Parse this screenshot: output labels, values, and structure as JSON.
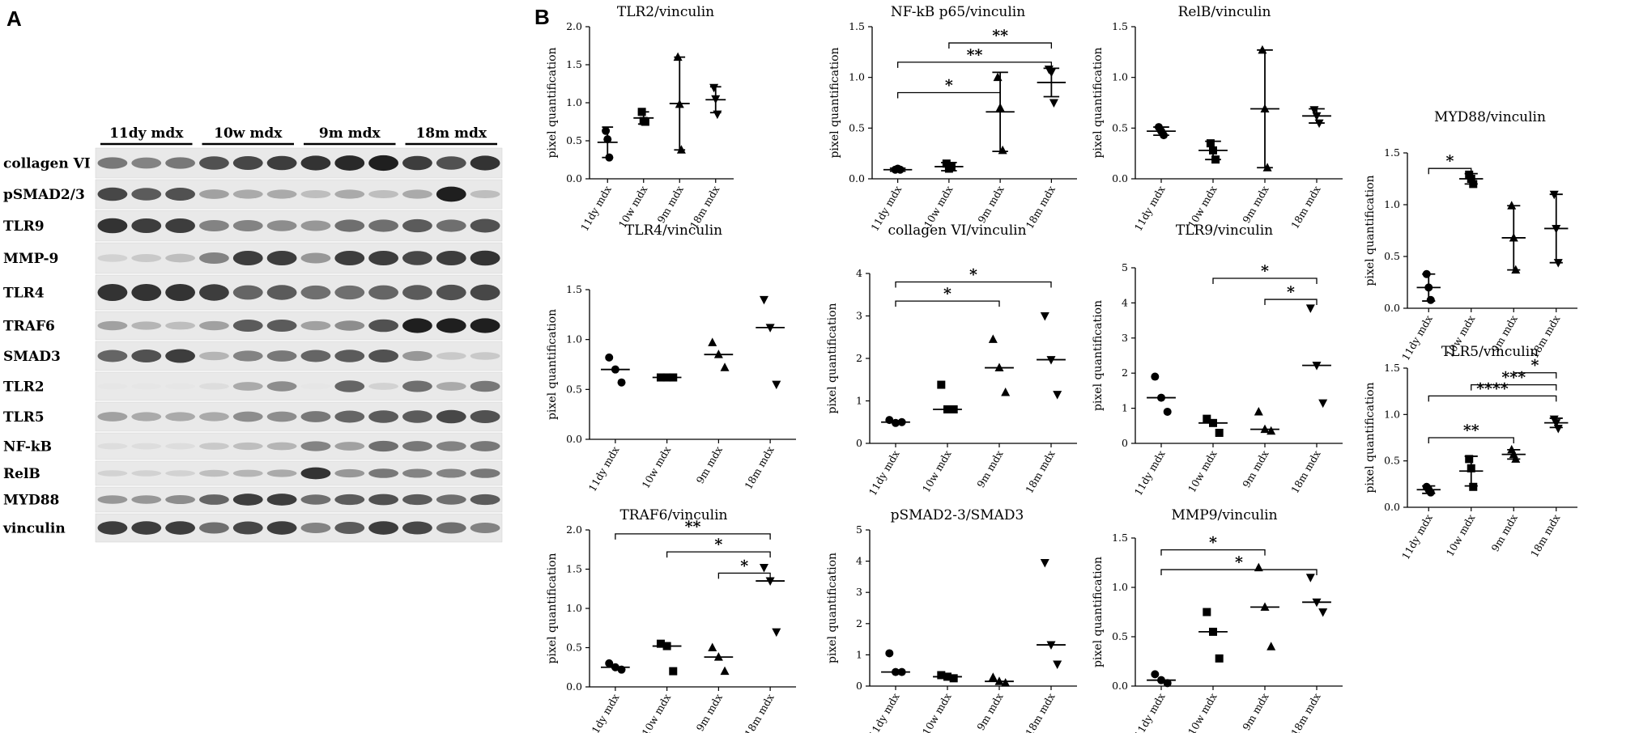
{
  "panel_a": {
    "letter": "A",
    "groups": [
      "11dy mdx",
      "10w mdx",
      "9m mdx",
      "18m mdx"
    ],
    "rows": [
      {
        "label": "collagen VI",
        "bands": [
          0.55,
          0.5,
          0.55,
          0.75,
          0.8,
          0.85,
          0.9,
          0.95,
          1.0,
          0.85,
          0.75,
          0.9
        ]
      },
      {
        "label": "pSMAD2/3",
        "bands": [
          0.8,
          0.7,
          0.75,
          0.35,
          0.3,
          0.3,
          0.2,
          0.3,
          0.2,
          0.3,
          1.0,
          0.2
        ]
      },
      {
        "label": "TLR9",
        "bands": [
          0.9,
          0.85,
          0.85,
          0.5,
          0.5,
          0.45,
          0.4,
          0.6,
          0.6,
          0.7,
          0.6,
          0.75
        ]
      },
      {
        "label": "MMP-9",
        "bands": [
          0.1,
          0.15,
          0.2,
          0.5,
          0.85,
          0.85,
          0.4,
          0.85,
          0.85,
          0.8,
          0.85,
          0.9
        ]
      },
      {
        "label": "TLR4",
        "bands": [
          0.9,
          0.9,
          0.9,
          0.85,
          0.65,
          0.7,
          0.6,
          0.6,
          0.65,
          0.7,
          0.75,
          0.8
        ]
      },
      {
        "label": "TRAF6",
        "bands": [
          0.35,
          0.25,
          0.2,
          0.35,
          0.7,
          0.7,
          0.35,
          0.45,
          0.75,
          1.0,
          1.0,
          1.0
        ]
      },
      {
        "label": "SMAD3",
        "bands": [
          0.65,
          0.75,
          0.85,
          0.25,
          0.5,
          0.55,
          0.65,
          0.7,
          0.75,
          0.4,
          0.15,
          0.15
        ]
      },
      {
        "label": "TLR2",
        "bands": [
          0.0,
          0.0,
          0.0,
          0.05,
          0.3,
          0.45,
          0.0,
          0.65,
          0.1,
          0.6,
          0.3,
          0.55
        ]
      },
      {
        "label": "TLR5",
        "bands": [
          0.35,
          0.3,
          0.3,
          0.3,
          0.45,
          0.45,
          0.55,
          0.65,
          0.7,
          0.7,
          0.8,
          0.75
        ]
      },
      {
        "label": "NF-kB",
        "bands": [
          0.05,
          0.05,
          0.05,
          0.15,
          0.2,
          0.25,
          0.5,
          0.35,
          0.6,
          0.55,
          0.5,
          0.55
        ]
      },
      {
        "label": "RelB",
        "bands": [
          0.1,
          0.1,
          0.1,
          0.2,
          0.25,
          0.3,
          0.9,
          0.4,
          0.55,
          0.5,
          0.5,
          0.55
        ]
      },
      {
        "label": "MYD88",
        "bands": [
          0.4,
          0.4,
          0.45,
          0.65,
          0.85,
          0.85,
          0.6,
          0.7,
          0.75,
          0.7,
          0.6,
          0.7
        ]
      },
      {
        "label": "vinculin",
        "bands": [
          0.85,
          0.85,
          0.85,
          0.6,
          0.8,
          0.85,
          0.5,
          0.7,
          0.85,
          0.8,
          0.6,
          0.5
        ]
      }
    ]
  },
  "panel_b": {
    "letter": "B"
  },
  "chart_data": [
    {
      "type": "scatter",
      "title": "TLR2/vinculin",
      "ylabel": "pixel quantification",
      "categories": [
        "11dy mdx",
        "10w mdx",
        "9m mdx",
        "18m mdx"
      ],
      "ylim": [
        0,
        2.0
      ],
      "yticks": [
        "0.0",
        "0.5",
        "1.0",
        "1.5",
        "2.0"
      ],
      "summary": "mean-sd",
      "means": [
        0.48,
        0.8,
        0.99,
        1.04
      ],
      "sd": [
        0.2,
        0.08,
        0.61,
        0.17
      ],
      "points": [
        [
          0.63,
          0.52,
          0.28
        ],
        [
          0.88,
          0.76,
          0.75
        ],
        [
          1.6,
          0.98,
          0.38
        ],
        [
          1.2,
          1.05,
          0.85
        ]
      ],
      "significance": []
    },
    {
      "type": "scatter",
      "title": "NF-kB p65/vinculin",
      "ylabel": "pixel quantification",
      "categories": [
        "11dy mdx",
        "10w mdx",
        "9m mdx",
        "18m mdx"
      ],
      "ylim": [
        0,
        1.5
      ],
      "yticks": [
        "0.0",
        "0.5",
        "1.0",
        "1.5"
      ],
      "summary": "mean-sd",
      "means": [
        0.09,
        0.12,
        0.66,
        0.95
      ],
      "sd": [
        0.015,
        0.04,
        0.39,
        0.14
      ],
      "points": [
        [
          0.09,
          0.1,
          0.09
        ],
        [
          0.15,
          0.1,
          0.12
        ],
        [
          1.0,
          0.7,
          0.28
        ],
        [
          1.08,
          1.05,
          0.75
        ]
      ],
      "significance": [
        {
          "from": 0,
          "to": 2,
          "label": "*",
          "y": 0.85
        },
        {
          "from": 0,
          "to": 3,
          "label": "**",
          "y": 1.15
        },
        {
          "from": 1,
          "to": 3,
          "label": "**",
          "y": 1.34
        }
      ]
    },
    {
      "type": "scatter",
      "title": "RelB/vinculin",
      "ylabel": "pixel quantification",
      "categories": [
        "11dy mdx",
        "10w mdx",
        "9m mdx",
        "18m mdx"
      ],
      "ylim": [
        0,
        1.5
      ],
      "yticks": [
        "0.0",
        "0.5",
        "1.0",
        "1.5"
      ],
      "summary": "mean-sd",
      "means": [
        0.47,
        0.28,
        0.69,
        0.62
      ],
      "sd": [
        0.04,
        0.09,
        0.58,
        0.07
      ],
      "points": [
        [
          0.51,
          0.47,
          0.43
        ],
        [
          0.35,
          0.28,
          0.19
        ],
        [
          1.27,
          0.69,
          0.11
        ],
        [
          0.68,
          0.62,
          0.55
        ]
      ],
      "significance": []
    },
    {
      "type": "scatter",
      "title": "MYD88/vinculin",
      "ylabel": "pixel quantification",
      "categories": [
        "11dy mdx",
        "10w mdx",
        "9m mdx",
        "18m mdx"
      ],
      "ylim": [
        0,
        1.5
      ],
      "yticks": [
        "0.0",
        "0.5",
        "1.0",
        "1.5"
      ],
      "summary": "mean-sd",
      "means": [
        0.2,
        1.25,
        0.68,
        0.77
      ],
      "sd": [
        0.13,
        0.05,
        0.31,
        0.33
      ],
      "points": [
        [
          0.33,
          0.2,
          0.08
        ],
        [
          1.29,
          1.25,
          1.2
        ],
        [
          0.99,
          0.68,
          0.37
        ],
        [
          1.1,
          0.77,
          0.44
        ]
      ],
      "significance": [
        {
          "from": 0,
          "to": 1,
          "label": "*",
          "y": 1.35
        }
      ]
    },
    {
      "type": "scatter",
      "title": "TLR4/vinculin",
      "ylabel": "pixel quantification",
      "categories": [
        "11dy mdx",
        "10w mdx",
        "9m mdx",
        "18m mdx"
      ],
      "ylim": [
        0,
        1.5
      ],
      "yticks": [
        "0.0",
        "0.5",
        "1.0",
        "1.5"
      ],
      "summary": "median",
      "medians": [
        0.7,
        0.62,
        0.85,
        1.12
      ],
      "points": [
        [
          0.82,
          0.7,
          0.57
        ],
        [
          0.62,
          0.62,
          0.62
        ],
        [
          0.97,
          0.85,
          0.72
        ],
        [
          1.4,
          1.12,
          0.55
        ]
      ],
      "significance": []
    },
    {
      "type": "scatter",
      "title": "collagen VI/vinculin",
      "ylabel": "pixel quantification",
      "categories": [
        "11dy mdx",
        "10w mdx",
        "9m mdx",
        "18m mdx"
      ],
      "ylim": [
        0,
        4
      ],
      "yticks": [
        "0",
        "1",
        "2",
        "3",
        "4"
      ],
      "summary": "median",
      "medians": [
        0.5,
        0.8,
        1.78,
        1.97
      ],
      "points": [
        [
          0.55,
          0.48,
          0.5
        ],
        [
          1.38,
          0.8,
          0.8
        ],
        [
          2.45,
          1.78,
          1.2
        ],
        [
          3.0,
          1.97,
          1.15
        ]
      ],
      "significance": [
        {
          "from": 0,
          "to": 2,
          "label": "*",
          "y": 3.35
        },
        {
          "from": 0,
          "to": 3,
          "label": "*",
          "y": 3.8
        }
      ]
    },
    {
      "type": "scatter",
      "title": "TLR9/vinculin",
      "ylabel": "pixel quantification",
      "categories": [
        "11dy mdx",
        "10w mdx",
        "9m mdx",
        "18m mdx"
      ],
      "ylim": [
        0,
        5
      ],
      "yticks": [
        "0",
        "1",
        "2",
        "3",
        "4",
        "5"
      ],
      "summary": "median",
      "medians": [
        1.3,
        0.58,
        0.4,
        2.22
      ],
      "points": [
        [
          1.9,
          1.3,
          0.9
        ],
        [
          0.7,
          0.58,
          0.3
        ],
        [
          0.9,
          0.4,
          0.35
        ],
        [
          3.85,
          2.22,
          1.15
        ]
      ],
      "significance": [
        {
          "from": 1,
          "to": 3,
          "label": "*",
          "y": 4.7
        },
        {
          "from": 2,
          "to": 3,
          "label": "*",
          "y": 4.1
        }
      ]
    },
    {
      "type": "scatter",
      "title": "TLR5/vinculin",
      "ylabel": "pixel quantification",
      "categories": [
        "11dy mdx",
        "10w mdx",
        "9m mdx",
        "18m mdx"
      ],
      "ylim": [
        0,
        1.5
      ],
      "yticks": [
        "0.0",
        "0.5",
        "1.0",
        "1.5"
      ],
      "summary": "mean-sd",
      "means": [
        0.19,
        0.39,
        0.57,
        0.91
      ],
      "sd": [
        0.04,
        0.16,
        0.05,
        0.05
      ],
      "points": [
        [
          0.22,
          0.19,
          0.16
        ],
        [
          0.52,
          0.42,
          0.22
        ],
        [
          0.62,
          0.57,
          0.52
        ],
        [
          0.95,
          0.91,
          0.85
        ]
      ],
      "significance": [
        {
          "from": 0,
          "to": 2,
          "label": "**",
          "y": 0.75
        },
        {
          "from": 0,
          "to": 3,
          "label": "****",
          "y": 1.2
        },
        {
          "from": 1,
          "to": 3,
          "label": "***",
          "y": 1.32
        },
        {
          "from": 2,
          "to": 3,
          "label": "*",
          "y": 1.45
        }
      ]
    },
    {
      "type": "scatter",
      "title": "TRAF6/vinculin",
      "ylabel": "pixel quantification",
      "categories": [
        "11dy mdx",
        "10w mdx",
        "9m mdx",
        "18m mdx"
      ],
      "ylim": [
        0,
        2.0
      ],
      "yticks": [
        "0.0",
        "0.5",
        "1.0",
        "1.5",
        "2.0"
      ],
      "summary": "median",
      "medians": [
        0.25,
        0.52,
        0.38,
        1.35
      ],
      "points": [
        [
          0.3,
          0.25,
          0.22
        ],
        [
          0.55,
          0.52,
          0.2
        ],
        [
          0.5,
          0.38,
          0.2
        ],
        [
          1.52,
          1.35,
          0.7
        ]
      ],
      "significance": [
        {
          "from": 0,
          "to": 3,
          "label": "**",
          "y": 1.95
        },
        {
          "from": 1,
          "to": 3,
          "label": "*",
          "y": 1.72
        },
        {
          "from": 2,
          "to": 3,
          "label": "*",
          "y": 1.45
        }
      ]
    },
    {
      "type": "scatter",
      "title": "pSMAD2-3/SMAD3",
      "ylabel": "pixel quantification",
      "categories": [
        "11dy mdx",
        "10w mdx",
        "9m mdx",
        "18m mdx"
      ],
      "ylim": [
        0,
        5
      ],
      "yticks": [
        "0",
        "1",
        "2",
        "3",
        "4",
        "5"
      ],
      "summary": "median",
      "medians": [
        0.45,
        0.3,
        0.15,
        1.32
      ],
      "points": [
        [
          1.05,
          0.45,
          0.45
        ],
        [
          0.35,
          0.3,
          0.25
        ],
        [
          0.28,
          0.15,
          0.1
        ],
        [
          3.95,
          1.32,
          0.7
        ]
      ],
      "significance": []
    },
    {
      "type": "scatter",
      "title": "MMP9/vinculin",
      "ylabel": "pixel quantification",
      "categories": [
        "11dy mdx",
        "10w mdx",
        "9m mdx",
        "18m mdx"
      ],
      "ylim": [
        0,
        1.5
      ],
      "yticks": [
        "0.0",
        "0.5",
        "1.0",
        "1.5"
      ],
      "summary": "median",
      "medians": [
        0.06,
        0.55,
        0.8,
        0.85
      ],
      "points": [
        [
          0.12,
          0.06,
          0.03
        ],
        [
          0.75,
          0.55,
          0.28
        ],
        [
          1.2,
          0.8,
          0.4
        ],
        [
          1.1,
          0.85,
          0.75
        ]
      ],
      "significance": [
        {
          "from": 0,
          "to": 2,
          "label": "*",
          "y": 1.38
        },
        {
          "from": 0,
          "to": 3,
          "label": "*",
          "y": 1.18
        }
      ]
    }
  ]
}
